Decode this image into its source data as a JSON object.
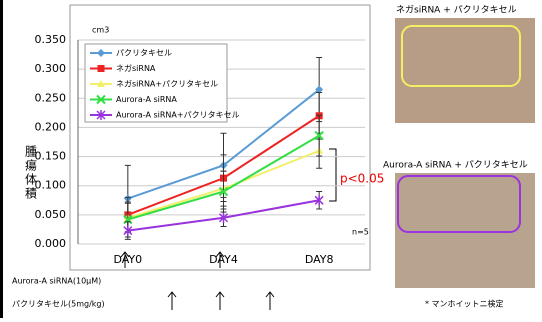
{
  "chart_data": {
    "type": "line",
    "unit": "cm3",
    "y_label": "腫瘍体積",
    "categories": [
      "DAY0",
      "DAY4",
      "DAY8"
    ],
    "ylim": [
      0,
      0.35
    ],
    "yticks": [
      {
        "value": 0,
        "label": "0.000"
      },
      {
        "value": 0.05,
        "label": "0.050"
      },
      {
        "value": 0.1,
        "label": "0.100"
      },
      {
        "value": 0.15,
        "label": "0.150"
      },
      {
        "value": 0.2,
        "label": "0.200"
      },
      {
        "value": 0.25,
        "label": "0.250"
      },
      {
        "value": 0.3,
        "label": "0.300"
      },
      {
        "value": 0.35,
        "label": "0.350"
      }
    ],
    "grid": true,
    "legend": "upper left",
    "series": [
      {
        "name": "パクリタキセル",
        "color": "#5b9bd5",
        "marker": "diamond",
        "values": [
          0.078,
          0.135,
          0.265
        ],
        "errors": [
          0.057,
          0.055,
          0.055
        ]
      },
      {
        "name": "ネガsiRNA",
        "color": "#ee2222",
        "marker": "square",
        "values": [
          0.05,
          0.113,
          0.22
        ],
        "errors": [
          0.03,
          0.04,
          0.04
        ]
      },
      {
        "name": "ネガsiRNA+パクリタキセル",
        "color": "#f2ef6a",
        "marker": "triangle",
        "values": [
          0.045,
          0.095,
          0.16
        ],
        "errors": [
          0.025,
          0.03,
          0.03
        ]
      },
      {
        "name": "Aurora-A siRNA",
        "color": "#33dd44",
        "marker": "x",
        "values": [
          0.042,
          0.09,
          0.186
        ],
        "errors": [
          0.03,
          0.035,
          0.035
        ]
      },
      {
        "name": "Aurora-A siRNA+パクリタキセル",
        "color": "#9933dd",
        "marker": "star",
        "values": [
          0.023,
          0.045,
          0.075
        ],
        "errors": [
          0.015,
          0.015,
          0.015
        ]
      }
    ],
    "annotations": {
      "significance": "p<0.05",
      "n": "n=5"
    }
  },
  "treatments": {
    "sirna": "Aurora-A siRNA(10μM)",
    "paclitaxel": "パクリタキセル(5mg/kg)",
    "test": "* マンホイットニ検定"
  },
  "photos": {
    "top_caption": "ネガsiRNA + パクリタキセル",
    "bottom_caption": "Aurora-A siRNA + パクリタキセル"
  }
}
